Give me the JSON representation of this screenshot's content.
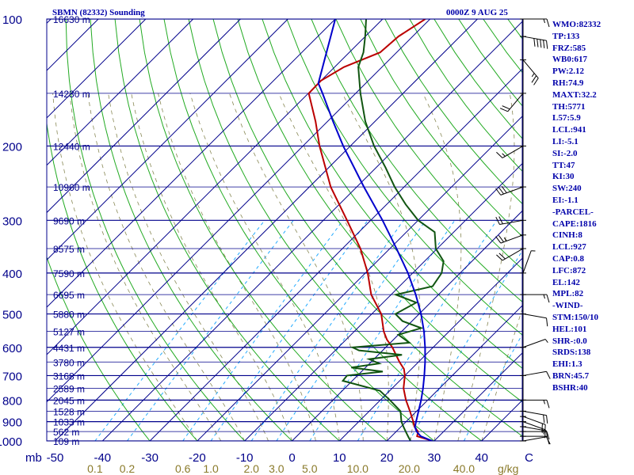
{
  "header": {
    "title": "SBMN (82332) Sounding",
    "date": "0000Z  9 AUG 25"
  },
  "indices": [
    "WMO:82332",
    "TP:133",
    "FRZ:585",
    "WB0:617",
    "PW:2.12",
    "RH:74.9",
    "MAXT:32.2",
    "TH:5771",
    "L57:5.9",
    "LCL:941",
    "LI:-5.1",
    "SI:-2.0",
    "TT:47",
    "KI:30",
    "SW:240",
    "EI:-1.1",
    "-PARCEL-",
    "CAPE:1816",
    "CINH:8",
    "LCL:927",
    "CAP:0.8",
    "LFC:872",
    "EL:142",
    "MPL:82",
    "-WIND-",
    "STM:150/10",
    "HEL:101",
    "SHR-:0.0",
    "SRDS:138",
    "EHI:1.3",
    "BRN:45.7",
    "BSHR:40"
  ],
  "colors": {
    "isobar": "#00008b",
    "isotherm": "#00008b",
    "dry_adiabat": "#22aa22",
    "moist_adiabat": "#888855",
    "mixing_ratio": "#22aaff",
    "temperature": "#bb0000",
    "dewpoint": "#115511",
    "parcel": "#0000cc",
    "wind_barbs": "#000000"
  },
  "chart_data": {
    "type": "skew-t log-p sounding",
    "x_unit_label": "C",
    "mixing_ratio_unit_label": "g/kg",
    "pressure_axis_label": "mb",
    "pressure_range": [
      1000,
      100
    ],
    "temperature_range": [
      -50,
      50
    ],
    "pressure_ticks": [
      100,
      200,
      300,
      400,
      500,
      600,
      700,
      800,
      900,
      1000
    ],
    "temperature_ticks": [
      -50,
      -40,
      -30,
      -20,
      -10,
      0,
      10,
      20,
      30,
      40
    ],
    "mixing_ratio_ticks": [
      "0.1",
      "0.2",
      "0.6",
      "1.0",
      "2.0",
      "3.0",
      "5.0",
      "10.0",
      "20.0",
      "40.0"
    ],
    "height_labels": [
      {
        "p": 100,
        "label": "16630 m"
      },
      {
        "p": 150,
        "label": "14230 m"
      },
      {
        "p": 200,
        "label": "12440 m"
      },
      {
        "p": 250,
        "label": "10960 m"
      },
      {
        "p": 300,
        "label": "9690 m"
      },
      {
        "p": 350,
        "label": "8575 m"
      },
      {
        "p": 400,
        "label": "7590 m"
      },
      {
        "p": 450,
        "label": "6695 m"
      },
      {
        "p": 500,
        "label": "5880 m"
      },
      {
        "p": 550,
        "label": "5127 m"
      },
      {
        "p": 600,
        "label": "4431 m"
      },
      {
        "p": 650,
        "label": "3780 m"
      },
      {
        "p": 700,
        "label": "3168 m"
      },
      {
        "p": 750,
        "label": "2589 m"
      },
      {
        "p": 800,
        "label": "2045 m"
      },
      {
        "p": 850,
        "label": "1528 m"
      },
      {
        "p": 900,
        "label": "1033 m"
      },
      {
        "p": 950,
        "label": "562 m"
      },
      {
        "p": 1000,
        "label": "109 m"
      }
    ],
    "series": [
      {
        "key": "temperature",
        "points": [
          [
            1000,
            29.6
          ],
          [
            990,
            28
          ],
          [
            975,
            25.4
          ],
          [
            950,
            24.6
          ],
          [
            925,
            22.8
          ],
          [
            900,
            21.5
          ],
          [
            850,
            18.6
          ],
          [
            800,
            15.4
          ],
          [
            750,
            12.4
          ],
          [
            700,
            10
          ],
          [
            675,
            8.4
          ],
          [
            650,
            6
          ],
          [
            600,
            1.4
          ],
          [
            575,
            -1.4
          ],
          [
            550,
            -3.8
          ],
          [
            500,
            -8
          ],
          [
            450,
            -14.2
          ],
          [
            400,
            -19.5
          ],
          [
            350,
            -26.2
          ],
          [
            300,
            -35
          ],
          [
            250,
            -45.5
          ],
          [
            200,
            -56.5
          ],
          [
            175,
            -62.5
          ],
          [
            150,
            -69.9
          ],
          [
            140,
            -70
          ],
          [
            130,
            -68
          ],
          [
            120,
            -63.5
          ],
          [
            110,
            -63
          ],
          [
            100,
            -61
          ]
        ]
      },
      {
        "key": "dewpoint",
        "points": [
          [
            1000,
            25
          ],
          [
            975,
            23.5
          ],
          [
            950,
            22
          ],
          [
            925,
            20.5
          ],
          [
            900,
            19
          ],
          [
            850,
            16.6
          ],
          [
            800,
            12
          ],
          [
            760,
            7.9
          ],
          [
            720,
            -2
          ],
          [
            700,
            -2.2
          ],
          [
            685,
            4.5
          ],
          [
            670,
            -3
          ],
          [
            655,
            2
          ],
          [
            640,
            -1
          ],
          [
            625,
            5
          ],
          [
            610,
            -5
          ],
          [
            600,
            -7
          ],
          [
            585,
            4
          ],
          [
            560,
            0
          ],
          [
            540,
            3.4
          ],
          [
            520,
            -2
          ],
          [
            500,
            -5
          ],
          [
            470,
            -3
          ],
          [
            450,
            -9
          ],
          [
            430,
            -3
          ],
          [
            400,
            -3.9
          ],
          [
            375,
            -6
          ],
          [
            350,
            -10.3
          ],
          [
            320,
            -14
          ],
          [
            300,
            -20
          ],
          [
            275,
            -26
          ],
          [
            250,
            -32
          ],
          [
            225,
            -38
          ],
          [
            200,
            -45
          ],
          [
            175,
            -52
          ],
          [
            150,
            -59
          ],
          [
            130,
            -65
          ],
          [
            120,
            -67
          ],
          [
            110,
            -70
          ],
          [
            100,
            -73.5
          ]
        ]
      },
      {
        "key": "parcel",
        "points": [
          [
            1000,
            29.6
          ],
          [
            975,
            26.2
          ],
          [
            950,
            24.3
          ],
          [
            927,
            23
          ],
          [
            900,
            22.1
          ],
          [
            850,
            20.4
          ],
          [
            800,
            18.6
          ],
          [
            750,
            16.5
          ],
          [
            700,
            14.1
          ],
          [
            650,
            11.4
          ],
          [
            600,
            8.3
          ],
          [
            550,
            4.7
          ],
          [
            500,
            0.4
          ],
          [
            450,
            -4.8
          ],
          [
            400,
            -11
          ],
          [
            350,
            -18.6
          ],
          [
            300,
            -27.5
          ],
          [
            250,
            -38.5
          ],
          [
            200,
            -51.5
          ],
          [
            175,
            -58.8
          ],
          [
            150,
            -67
          ],
          [
            142,
            -70
          ],
          [
            100,
            -80
          ]
        ]
      }
    ],
    "wind_barbs": [
      {
        "p": 1000,
        "dir": 80,
        "spd": 10
      },
      {
        "p": 975,
        "dir": 90,
        "spd": 10
      },
      {
        "p": 950,
        "dir": 90,
        "spd": 10
      },
      {
        "p": 925,
        "dir": 100,
        "spd": 15
      },
      {
        "p": 900,
        "dir": 110,
        "spd": 15
      },
      {
        "p": 875,
        "dir": 110,
        "spd": 20
      },
      {
        "p": 850,
        "dir": 100,
        "spd": 20
      },
      {
        "p": 800,
        "dir": 90,
        "spd": 15
      },
      {
        "p": 700,
        "dir": 80,
        "spd": 10
      },
      {
        "p": 600,
        "dir": 70,
        "spd": 5
      },
      {
        "p": 500,
        "dir": 100,
        "spd": 10
      },
      {
        "p": 450,
        "dir": 90,
        "spd": 15
      },
      {
        "p": 400,
        "dir": 20,
        "spd": 5
      },
      {
        "p": 350,
        "dir": 240,
        "spd": 20
      },
      {
        "p": 325,
        "dir": 250,
        "spd": 25
      },
      {
        "p": 300,
        "dir": 260,
        "spd": 20
      },
      {
        "p": 250,
        "dir": 250,
        "spd": 30
      },
      {
        "p": 200,
        "dir": 240,
        "spd": 15
      },
      {
        "p": 150,
        "dir": 220,
        "spd": 20
      },
      {
        "p": 125,
        "dir": 140,
        "spd": 25
      },
      {
        "p": 110,
        "dir": 100,
        "spd": 50
      },
      {
        "p": 100,
        "dir": 90,
        "spd": 15
      }
    ]
  }
}
